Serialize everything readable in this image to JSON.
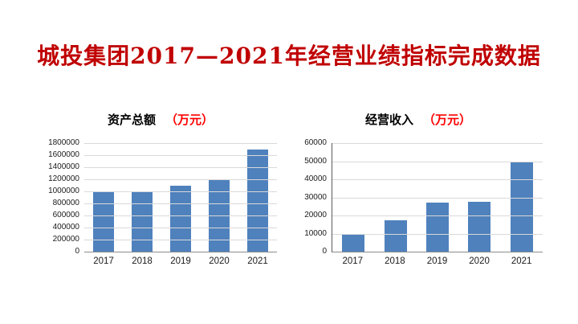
{
  "page": {
    "background_color": "#ffffff"
  },
  "slide_title": {
    "text": "城投集团2017—2021年经营业绩指标完成数据",
    "color": "#C00000"
  },
  "chart_data": [
    {
      "type": "bar",
      "title": "资产总额",
      "unit_label": "（万元）",
      "title_color": "#000000",
      "unit_color": "#FF0000",
      "categories": [
        "2017",
        "2018",
        "2019",
        "2020",
        "2021"
      ],
      "values": [
        990000,
        1000000,
        1100000,
        1190000,
        1690000
      ],
      "xlabel": "",
      "ylabel": "",
      "ylim": [
        0,
        1800000
      ],
      "y_ticks": [
        0,
        200000,
        400000,
        600000,
        800000,
        1000000,
        1200000,
        1400000,
        1600000,
        1800000
      ],
      "bar_color": "#4F81BD",
      "gridline_color": "#D9D9D9",
      "grid": true,
      "legend": "none"
    },
    {
      "type": "bar",
      "title": "经营收入",
      "unit_label": "（万元）",
      "title_color": "#000000",
      "unit_color": "#FF0000",
      "categories": [
        "2017",
        "2018",
        "2019",
        "2020",
        "2021"
      ],
      "values": [
        9500,
        17500,
        27000,
        27500,
        49500
      ],
      "xlabel": "",
      "ylabel": "",
      "ylim": [
        0,
        60000
      ],
      "y_ticks": [
        0,
        10000,
        20000,
        30000,
        40000,
        50000,
        60000
      ],
      "bar_color": "#4F81BD",
      "gridline_color": "#D9D9D9",
      "grid": true,
      "legend": "none"
    }
  ]
}
